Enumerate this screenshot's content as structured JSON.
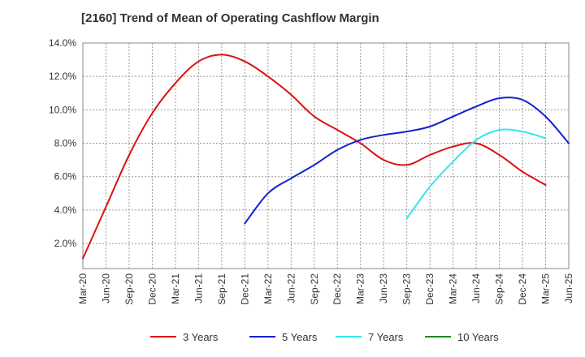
{
  "chart_data": {
    "type": "line",
    "title": "[2160]  Trend of Mean of Operating Cashflow Margin",
    "xlabel": "",
    "ylabel": "",
    "x_ticks": [
      "Mar-20",
      "Jun-20",
      "Sep-20",
      "Dec-20",
      "Mar-21",
      "Jun-21",
      "Sep-21",
      "Dec-21",
      "Mar-22",
      "Jun-22",
      "Sep-22",
      "Dec-22",
      "Mar-23",
      "Jun-23",
      "Sep-23",
      "Dec-23",
      "Mar-24",
      "Jun-24",
      "Sep-24",
      "Dec-24",
      "Mar-25",
      "Jun-25"
    ],
    "y_ticks": [
      "2.0%",
      "4.0%",
      "6.0%",
      "8.0%",
      "10.0%",
      "12.0%",
      "14.0%"
    ],
    "y_tick_values": [
      2,
      4,
      6,
      8,
      10,
      12,
      14
    ],
    "ylim": [
      0.5,
      14
    ],
    "grid": true,
    "legend_position": "bottom",
    "series": [
      {
        "name": "3 Years",
        "color": "#dd1111",
        "start_index": 0,
        "values": [
          1.1,
          4.2,
          7.3,
          9.8,
          11.6,
          12.9,
          13.3,
          12.9,
          12.0,
          10.9,
          9.6,
          8.8,
          8.0,
          7.0,
          6.7,
          7.3,
          7.8,
          8.0,
          7.3,
          6.3,
          5.5
        ]
      },
      {
        "name": "5 Years",
        "color": "#1122cc",
        "start_index": 7,
        "values": [
          3.2,
          5.0,
          5.9,
          6.7,
          7.6,
          8.2,
          8.5,
          8.7,
          9.0,
          9.6,
          10.2,
          10.7,
          10.6,
          9.6,
          8.0
        ]
      },
      {
        "name": "7 Years",
        "color": "#33e5f0",
        "start_index": 14,
        "values": [
          3.5,
          5.4,
          6.9,
          8.2,
          8.8,
          8.7,
          8.3
        ]
      },
      {
        "name": "10 Years",
        "color": "#228822",
        "start_index": 0,
        "values": []
      }
    ]
  }
}
